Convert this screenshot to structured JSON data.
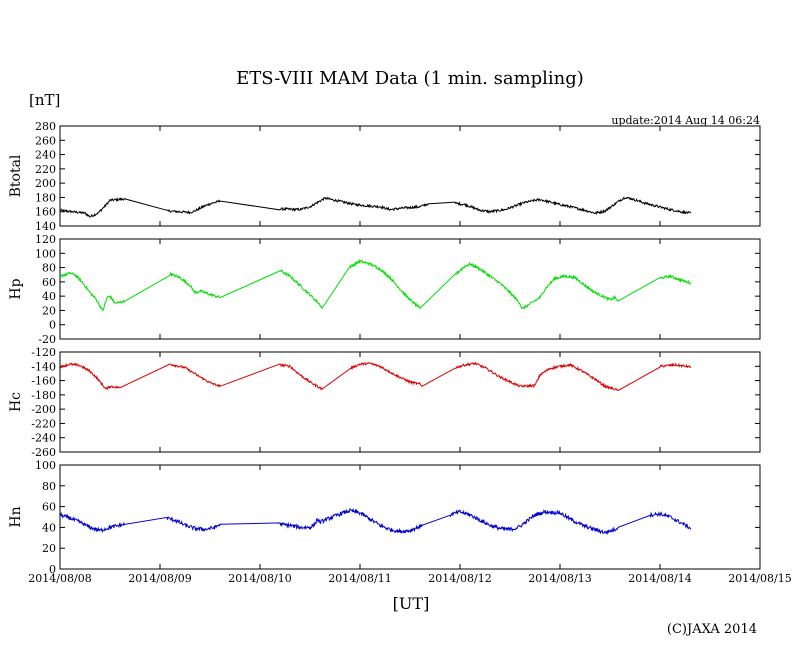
{
  "chart_data": {
    "type": "line",
    "title": "ETS-VIII MAM Data (1 min. sampling)",
    "y_unit": "[nT]",
    "update": "update:2014 Aug 14 06:24",
    "xlabel": "[UT]",
    "copyright": "(C)JAXA 2014",
    "x_ticks": [
      "2014/08/08",
      "2014/08/09",
      "2014/08/10",
      "2014/08/11",
      "2014/08/12",
      "2014/08/13",
      "2014/08/14",
      "2014/08/15"
    ],
    "x_range_days": [
      0,
      7
    ],
    "panels": [
      {
        "ylabel": "Btotal",
        "ylim": [
          140,
          280
        ],
        "yticks": [
          140,
          160,
          180,
          200,
          220,
          240,
          260,
          280
        ],
        "color": "#000000",
        "noise": 1.6,
        "points": [
          [
            0.0,
            162
          ],
          [
            0.12,
            160
          ],
          [
            0.25,
            158
          ],
          [
            0.3,
            153
          ],
          [
            0.38,
            158
          ],
          [
            0.45,
            168
          ],
          [
            0.5,
            176
          ],
          [
            0.65,
            178
          ],
          [
            1.07,
            161
          ],
          [
            1.3,
            159
          ],
          [
            1.35,
            161
          ],
          [
            1.43,
            167
          ],
          [
            1.5,
            171
          ],
          [
            1.6,
            175
          ],
          [
            2.2,
            164
          ],
          [
            2.4,
            163
          ],
          [
            2.5,
            167
          ],
          [
            2.6,
            175
          ],
          [
            2.65,
            179
          ],
          [
            2.75,
            176
          ],
          [
            2.95,
            170
          ],
          [
            3.1,
            168
          ],
          [
            3.2,
            167
          ],
          [
            3.3,
            163
          ],
          [
            3.42,
            165
          ],
          [
            3.6,
            167
          ],
          [
            3.68,
            171
          ],
          [
            3.95,
            172
          ],
          [
            4.05,
            170
          ],
          [
            4.2,
            162
          ],
          [
            4.3,
            160
          ],
          [
            4.45,
            163
          ],
          [
            4.55,
            168
          ],
          [
            4.65,
            173
          ],
          [
            4.75,
            176
          ],
          [
            4.8,
            177
          ],
          [
            5.0,
            170
          ],
          [
            5.1,
            167
          ],
          [
            5.25,
            162
          ],
          [
            5.35,
            158
          ],
          [
            5.45,
            161
          ],
          [
            5.6,
            176
          ],
          [
            5.65,
            180
          ],
          [
            5.72,
            178
          ],
          [
            5.85,
            172
          ],
          [
            6.1,
            163
          ],
          [
            6.25,
            159
          ],
          [
            6.31,
            158
          ]
        ]
      },
      {
        "ylabel": "Hp",
        "ylim": [
          -20,
          120
        ],
        "yticks": [
          -20,
          0,
          20,
          40,
          60,
          80,
          100,
          120
        ],
        "color": "#00dd00",
        "noise": 1.8,
        "points": [
          [
            0.0,
            68
          ],
          [
            0.1,
            72
          ],
          [
            0.15,
            70
          ],
          [
            0.22,
            60
          ],
          [
            0.3,
            45
          ],
          [
            0.36,
            36
          ],
          [
            0.4,
            26
          ],
          [
            0.43,
            20
          ],
          [
            0.47,
            38
          ],
          [
            0.5,
            40
          ],
          [
            0.55,
            30
          ],
          [
            0.65,
            33
          ],
          [
            1.1,
            71
          ],
          [
            1.2,
            66
          ],
          [
            1.3,
            55
          ],
          [
            1.35,
            45
          ],
          [
            1.4,
            47
          ],
          [
            1.6,
            38
          ],
          [
            2.2,
            76
          ],
          [
            2.3,
            68
          ],
          [
            2.4,
            55
          ],
          [
            2.5,
            42
          ],
          [
            2.6,
            28
          ],
          [
            2.62,
            23
          ],
          [
            2.9,
            81
          ],
          [
            3.0,
            89
          ],
          [
            3.1,
            85
          ],
          [
            3.2,
            78
          ],
          [
            3.3,
            66
          ],
          [
            3.4,
            50
          ],
          [
            3.5,
            35
          ],
          [
            3.6,
            23
          ],
          [
            3.95,
            70
          ],
          [
            4.05,
            82
          ],
          [
            4.1,
            85
          ],
          [
            4.2,
            78
          ],
          [
            4.3,
            68
          ],
          [
            4.4,
            58
          ],
          [
            4.5,
            45
          ],
          [
            4.6,
            30
          ],
          [
            4.62,
            22
          ],
          [
            4.8,
            38
          ],
          [
            4.85,
            50
          ],
          [
            4.95,
            65
          ],
          [
            5.05,
            68
          ],
          [
            5.15,
            66
          ],
          [
            5.25,
            55
          ],
          [
            5.35,
            45
          ],
          [
            5.5,
            35
          ],
          [
            5.55,
            38
          ],
          [
            5.58,
            33
          ],
          [
            6.0,
            65
          ],
          [
            6.1,
            68
          ],
          [
            6.2,
            63
          ],
          [
            6.31,
            58
          ]
        ]
      },
      {
        "ylabel": "Hc",
        "ylim": [
          -260,
          -120
        ],
        "yticks": [
          -120,
          -140,
          -160,
          -180,
          -200,
          -220,
          -240,
          -260
        ],
        "color": "#dd0000",
        "noise": 1.6,
        "points": [
          [
            0.0,
            -141
          ],
          [
            0.1,
            -137
          ],
          [
            0.2,
            -139
          ],
          [
            0.3,
            -147
          ],
          [
            0.36,
            -155
          ],
          [
            0.42,
            -165
          ],
          [
            0.46,
            -172
          ],
          [
            0.5,
            -168
          ],
          [
            0.6,
            -170
          ],
          [
            1.1,
            -137
          ],
          [
            1.25,
            -142
          ],
          [
            1.4,
            -155
          ],
          [
            1.5,
            -163
          ],
          [
            1.6,
            -168
          ],
          [
            2.2,
            -138
          ],
          [
            2.3,
            -140
          ],
          [
            2.4,
            -152
          ],
          [
            2.5,
            -162
          ],
          [
            2.6,
            -170
          ],
          [
            2.62,
            -172
          ],
          [
            2.9,
            -143
          ],
          [
            3.0,
            -137
          ],
          [
            3.1,
            -136
          ],
          [
            3.2,
            -140
          ],
          [
            3.35,
            -152
          ],
          [
            3.5,
            -162
          ],
          [
            3.6,
            -165
          ],
          [
            3.62,
            -168
          ],
          [
            3.95,
            -142
          ],
          [
            4.05,
            -138
          ],
          [
            4.15,
            -136
          ],
          [
            4.25,
            -142
          ],
          [
            4.4,
            -155
          ],
          [
            4.55,
            -165
          ],
          [
            4.6,
            -168
          ],
          [
            4.75,
            -167
          ],
          [
            4.8,
            -152
          ],
          [
            4.9,
            -143
          ],
          [
            5.0,
            -140
          ],
          [
            5.1,
            -138
          ],
          [
            5.2,
            -145
          ],
          [
            5.35,
            -158
          ],
          [
            5.45,
            -168
          ],
          [
            5.55,
            -172
          ],
          [
            5.58,
            -174
          ],
          [
            6.0,
            -140
          ],
          [
            6.15,
            -138
          ],
          [
            6.31,
            -141
          ]
        ]
      },
      {
        "ylabel": "Hn",
        "ylim": [
          0,
          100
        ],
        "yticks": [
          0,
          20,
          40,
          60,
          80,
          100
        ],
        "color": "#0000cc",
        "noise": 1.8,
        "points": [
          [
            0.0,
            52
          ],
          [
            0.1,
            49
          ],
          [
            0.2,
            45
          ],
          [
            0.3,
            40
          ],
          [
            0.4,
            37
          ],
          [
            0.5,
            40
          ],
          [
            0.6,
            42
          ],
          [
            0.65,
            43
          ],
          [
            1.07,
            49
          ],
          [
            1.15,
            47
          ],
          [
            1.25,
            42
          ],
          [
            1.35,
            39
          ],
          [
            1.45,
            38
          ],
          [
            1.55,
            40
          ],
          [
            1.6,
            43
          ],
          [
            2.2,
            43
          ],
          [
            2.3,
            42
          ],
          [
            2.4,
            40
          ],
          [
            2.5,
            40
          ],
          [
            2.55,
            43
          ],
          [
            2.57,
            48
          ],
          [
            2.6,
            45
          ],
          [
            2.8,
            53
          ],
          [
            2.9,
            56
          ],
          [
            3.0,
            54
          ],
          [
            3.1,
            48
          ],
          [
            3.2,
            42
          ],
          [
            3.3,
            38
          ],
          [
            3.4,
            36
          ],
          [
            3.5,
            37
          ],
          [
            3.6,
            41
          ],
          [
            3.62,
            42
          ],
          [
            3.9,
            52
          ],
          [
            4.0,
            55
          ],
          [
            4.1,
            52
          ],
          [
            4.2,
            47
          ],
          [
            4.3,
            42
          ],
          [
            4.4,
            39
          ],
          [
            4.5,
            38
          ],
          [
            4.55,
            39
          ],
          [
            4.6,
            41
          ],
          [
            4.75,
            52
          ],
          [
            4.85,
            55
          ],
          [
            5.0,
            54
          ],
          [
            5.1,
            48
          ],
          [
            5.25,
            41
          ],
          [
            5.35,
            38
          ],
          [
            5.45,
            35
          ],
          [
            5.55,
            38
          ],
          [
            5.58,
            40
          ],
          [
            5.9,
            52
          ],
          [
            6.0,
            53
          ],
          [
            6.1,
            50
          ],
          [
            6.2,
            45
          ],
          [
            6.31,
            39
          ]
        ]
      }
    ]
  }
}
